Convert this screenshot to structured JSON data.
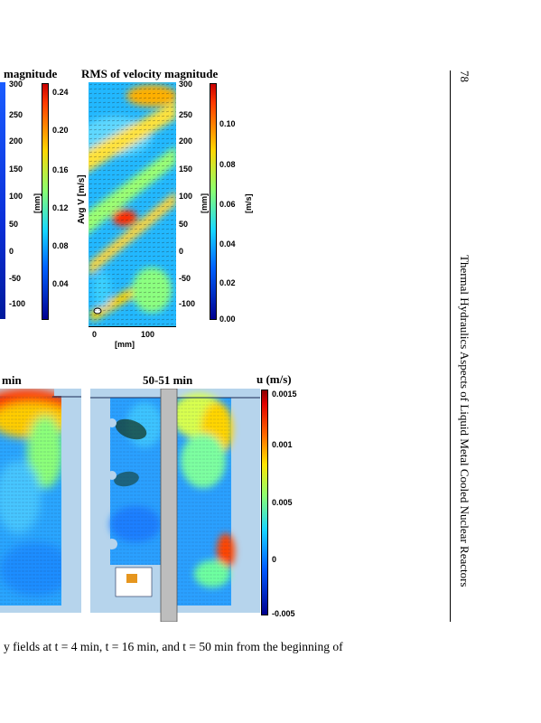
{
  "page": {
    "number": "78",
    "running_title": "Thermal Hydraulics Aspects of Liquid Metal Cooled Nuclear Reactors",
    "caption_fragment": "y fields at t = 4 min, t = 16 min, and t = 50 min from the beginning of"
  },
  "top_left": {
    "title": "magnitude",
    "axis_ticks": [
      "300",
      "250",
      "200",
      "150",
      "100",
      "50",
      "0",
      "-50",
      "-100"
    ],
    "colorbar_ticks": [
      "0.24",
      "0.20",
      "0.16",
      "0.12",
      "0.08",
      "0.04"
    ],
    "colorbar_unit": "[mm]"
  },
  "top_right": {
    "title": "RMS of velocity magnitude",
    "ylabel": "Avg V [m/s]",
    "axis_ticks": [
      "300",
      "250",
      "200",
      "150",
      "100",
      "50",
      "0",
      "-50",
      "-100"
    ],
    "axis_unit": "[mm]",
    "x_ticks": [
      "0",
      "100"
    ],
    "xlabel": "[mm]",
    "colorbar_ticks": [
      "0.10",
      "0.08",
      "0.06",
      "0.04",
      "0.02",
      "0.00"
    ],
    "colorbar_unit": "[m/s]"
  },
  "bottom_left": {
    "title": "min"
  },
  "bottom_right": {
    "title": "50-51 min",
    "colorbar_title": "u (m/s)",
    "colorbar_ticks": [
      "0.0015",
      "0.001",
      "0.005",
      "0",
      "-0.005"
    ]
  },
  "colors": {
    "jet_dark_blue": "#00008f",
    "jet_blue": "#0050ff",
    "jet_cyan": "#00d8ff",
    "jet_green": "#7cff79",
    "jet_yellow": "#ffe600",
    "jet_red": "#d40000",
    "vessel_fill": "#b6d4ec",
    "rod_gray": "#bdbdbd",
    "heater_orange": "#e6961e"
  }
}
